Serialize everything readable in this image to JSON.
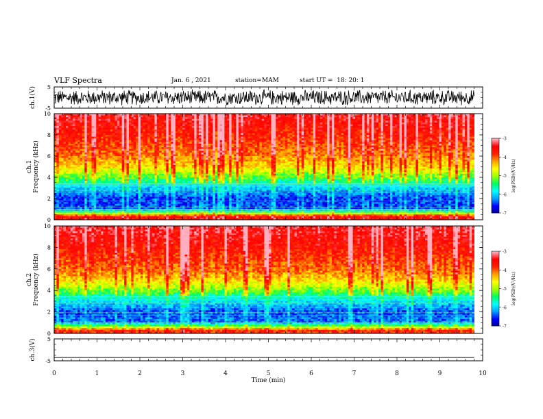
{
  "header": {
    "title": "VLF Spectra",
    "date": "Jan. 6 , 2021",
    "station": "station=MAM",
    "start": "start UT =  18: 20: 1"
  },
  "chart_data": [
    {
      "type": "line",
      "panel": "ch1-waveform",
      "ylabel": "ch.1(V)",
      "ylim": [
        -5,
        5
      ],
      "yticks": [
        "5",
        "-5"
      ],
      "xlim": [
        0,
        10
      ],
      "note_series": "dense noisy waveform, amplitude mostly -3..3 V"
    },
    {
      "type": "heatmap",
      "panel": "ch1-spectrogram",
      "ylabel": "ch.1\nFrequency (kHz)",
      "ylim": [
        0,
        10
      ],
      "yticks": [
        "0",
        "2",
        "4",
        "6",
        "8",
        "10"
      ],
      "xlim": [
        0,
        10
      ],
      "colorbar": {
        "label": "log(PSD)(V²/Hz)",
        "ticks": [
          "-3",
          "-4",
          "-5",
          "-6",
          "-7"
        ],
        "range": [
          -7,
          -3
        ]
      },
      "profile": [
        {
          "freq_khz": 0.3,
          "log_psd": -3.6
        },
        {
          "freq_khz": 1.0,
          "log_psd": -6.4
        },
        {
          "freq_khz": 2.0,
          "log_psd": -6.5
        },
        {
          "freq_khz": 3.0,
          "log_psd": -6.0
        },
        {
          "freq_khz": 4.0,
          "log_psd": -5.2
        },
        {
          "freq_khz": 5.0,
          "log_psd": -4.5
        },
        {
          "freq_khz": 6.0,
          "log_psd": -4.1
        },
        {
          "freq_khz": 8.0,
          "log_psd": -3.7
        },
        {
          "freq_khz": 10.0,
          "log_psd": -3.4
        }
      ]
    },
    {
      "type": "heatmap",
      "panel": "ch2-spectrogram",
      "ylabel": "ch.2\nFrequency (kHz)",
      "ylim": [
        0,
        10
      ],
      "yticks": [
        "0",
        "2",
        "4",
        "6",
        "8",
        "10"
      ],
      "xlim": [
        0,
        10
      ],
      "colorbar": {
        "label": "log(PSD)(V²/Hz)",
        "ticks": [
          "-3",
          "-4",
          "-5",
          "-6",
          "-7"
        ],
        "range": [
          -7,
          -3
        ]
      },
      "profile": [
        {
          "freq_khz": 0.3,
          "log_psd": -3.8
        },
        {
          "freq_khz": 1.0,
          "log_psd": -6.3
        },
        {
          "freq_khz": 2.0,
          "log_psd": -6.4
        },
        {
          "freq_khz": 3.0,
          "log_psd": -5.9
        },
        {
          "freq_khz": 4.0,
          "log_psd": -5.1
        },
        {
          "freq_khz": 5.0,
          "log_psd": -4.4
        },
        {
          "freq_khz": 6.0,
          "log_psd": -4.0
        },
        {
          "freq_khz": 8.0,
          "log_psd": -3.6
        },
        {
          "freq_khz": 10.0,
          "log_psd": -3.3
        }
      ]
    },
    {
      "type": "line",
      "panel": "ch3-waveform",
      "ylabel": "ch.3(V)",
      "ylim": [
        -5,
        5
      ],
      "yticks": [
        "5",
        "-5"
      ],
      "xlim": [
        0,
        10
      ],
      "series": [
        {
          "x": [
            0,
            9.8
          ],
          "values": [
            -3.5,
            -3.5
          ]
        }
      ]
    }
  ],
  "x_axis": {
    "label": "Time (min)",
    "ticks": [
      "0",
      "1",
      "2",
      "3",
      "4",
      "5",
      "6",
      "7",
      "8",
      "9",
      "10"
    ],
    "data_end_min": 9.8
  },
  "colors": {
    "colormap": [
      "#000090",
      "#0000ff",
      "#00a0ff",
      "#00ffff",
      "#00ff60",
      "#a0ff00",
      "#ffff00",
      "#ffa000",
      "#ff2000",
      "#ff0000",
      "#ffb0c0"
    ]
  }
}
